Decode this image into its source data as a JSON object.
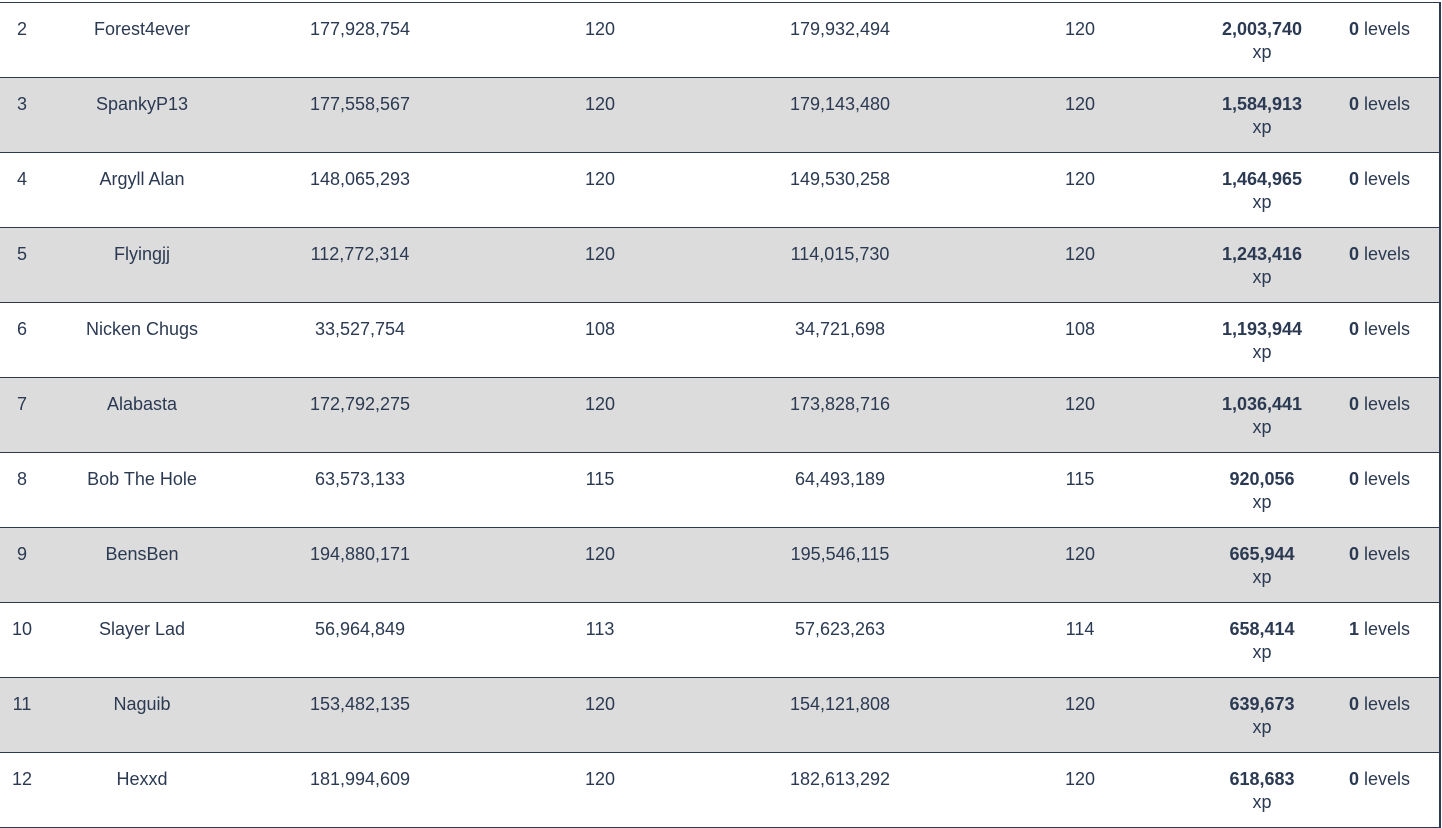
{
  "rows": [
    {
      "rank": "2",
      "name": "Forest4ever",
      "start_xp": "177,928,754",
      "start_level": "120",
      "end_xp": "179,932,494",
      "end_level": "120",
      "gain_xp": "2,003,740",
      "xp_unit": "xp",
      "gain_levels": "0",
      "levels_unit": "levels"
    },
    {
      "rank": "3",
      "name": "SpankyP13",
      "start_xp": "177,558,567",
      "start_level": "120",
      "end_xp": "179,143,480",
      "end_level": "120",
      "gain_xp": "1,584,913",
      "xp_unit": "xp",
      "gain_levels": "0",
      "levels_unit": "levels"
    },
    {
      "rank": "4",
      "name": "Argyll Alan",
      "start_xp": "148,065,293",
      "start_level": "120",
      "end_xp": "149,530,258",
      "end_level": "120",
      "gain_xp": "1,464,965",
      "xp_unit": "xp",
      "gain_levels": "0",
      "levels_unit": "levels"
    },
    {
      "rank": "5",
      "name": "Flyingjj",
      "start_xp": "112,772,314",
      "start_level": "120",
      "end_xp": "114,015,730",
      "end_level": "120",
      "gain_xp": "1,243,416",
      "xp_unit": "xp",
      "gain_levels": "0",
      "levels_unit": "levels"
    },
    {
      "rank": "6",
      "name": "Nicken Chugs",
      "start_xp": "33,527,754",
      "start_level": "108",
      "end_xp": "34,721,698",
      "end_level": "108",
      "gain_xp": "1,193,944",
      "xp_unit": "xp",
      "gain_levels": "0",
      "levels_unit": "levels"
    },
    {
      "rank": "7",
      "name": "Alabasta",
      "start_xp": "172,792,275",
      "start_level": "120",
      "end_xp": "173,828,716",
      "end_level": "120",
      "gain_xp": "1,036,441",
      "xp_unit": "xp",
      "gain_levels": "0",
      "levels_unit": "levels"
    },
    {
      "rank": "8",
      "name": "Bob The Hole",
      "start_xp": "63,573,133",
      "start_level": "115",
      "end_xp": "64,493,189",
      "end_level": "115",
      "gain_xp": "920,056",
      "xp_unit": "xp",
      "gain_levels": "0",
      "levels_unit": "levels"
    },
    {
      "rank": "9",
      "name": "BensBen",
      "start_xp": "194,880,171",
      "start_level": "120",
      "end_xp": "195,546,115",
      "end_level": "120",
      "gain_xp": "665,944",
      "xp_unit": "xp",
      "gain_levels": "0",
      "levels_unit": "levels"
    },
    {
      "rank": "10",
      "name": "Slayer Lad",
      "start_xp": "56,964,849",
      "start_level": "113",
      "end_xp": "57,623,263",
      "end_level": "114",
      "gain_xp": "658,414",
      "xp_unit": "xp",
      "gain_levels": "1",
      "levels_unit": "levels"
    },
    {
      "rank": "11",
      "name": "Naguib",
      "start_xp": "153,482,135",
      "start_level": "120",
      "end_xp": "154,121,808",
      "end_level": "120",
      "gain_xp": "639,673",
      "xp_unit": "xp",
      "gain_levels": "0",
      "levels_unit": "levels"
    },
    {
      "rank": "12",
      "name": "Hexxd",
      "start_xp": "181,994,609",
      "start_level": "120",
      "end_xp": "182,613,292",
      "end_level": "120",
      "gain_xp": "618,683",
      "xp_unit": "xp",
      "gain_levels": "0",
      "levels_unit": "levels"
    }
  ]
}
